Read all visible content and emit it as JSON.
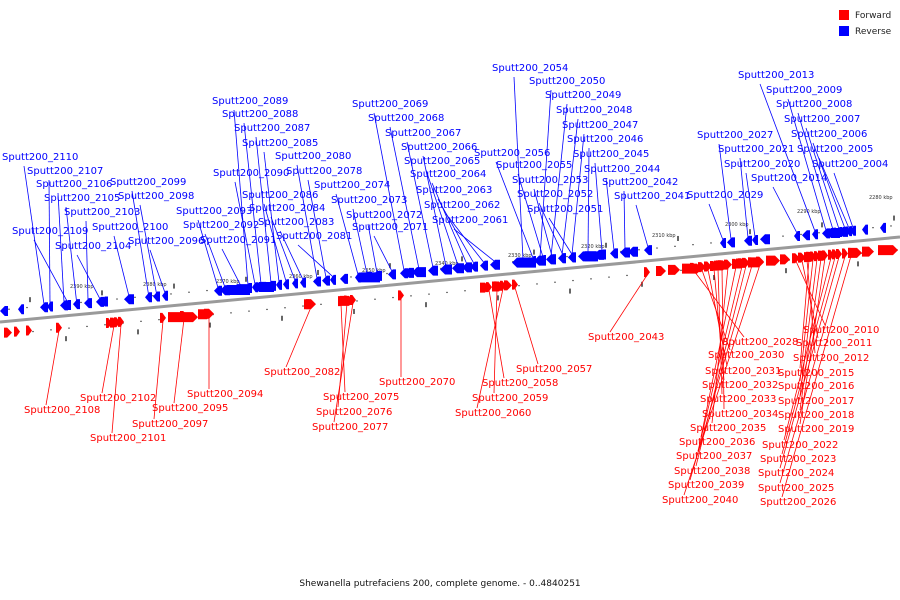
{
  "caption": "Shewanella putrefaciens 200, complete genome. - 0..4840251",
  "legend": {
    "forward_label": "Forward",
    "reverse_label": "Reverse",
    "forward_color": "#ff0000",
    "reverse_color": "#0000ff"
  },
  "colors": {
    "forward": "#ff0000",
    "reverse": "#0000ff",
    "backbone": "#888888"
  },
  "axis": {
    "ticks": [
      "2390 kbp",
      "2380 kbp",
      "2370 kbp",
      "2360 kbp",
      "2350 kbp",
      "2340 kbp",
      "2330 kbp",
      "2320 kbp",
      "2310 kbp",
      "2300 kbp",
      "2290 kbp",
      "2280 kbp"
    ]
  },
  "reverse_genes": [
    "Sputt200_2110",
    "Sputt200_2107",
    "Sputt200_2106",
    "Sputt200_2105",
    "Sputt200_2109",
    "Sputt200_2103",
    "Sputt200_2104",
    "Sputt200_2100",
    "Sputt200_2099",
    "Sputt200_2098",
    "Sputt200_2096",
    "Sputt200_2093",
    "Sputt200_2092",
    "Sputt200_2091",
    "Sputt200_2089",
    "Sputt200_2088",
    "Sputt200_2087",
    "Sputt200_2085",
    "Sputt200_2090",
    "Sputt200_2086",
    "Sputt200_2084",
    "Sputt200_2083",
    "Sputt200_2080",
    "Sputt200_2078",
    "Sputt200_2081",
    "Sputt200_2074",
    "Sputt200_2073",
    "Sputt200_2072",
    "Sputt200_2071",
    "Sputt200_2069",
    "Sputt200_2068",
    "Sputt200_2067",
    "Sputt200_2066",
    "Sputt200_2065",
    "Sputt200_2064",
    "Sputt200_2063",
    "Sputt200_2062",
    "Sputt200_2061",
    "Sputt200_2054",
    "Sputt200_2050",
    "Sputt200_2049",
    "Sputt200_2048",
    "Sputt200_2047",
    "Sputt200_2046",
    "Sputt200_2056",
    "Sputt200_2055",
    "Sputt200_2053",
    "Sputt200_2045",
    "Sputt200_2044",
    "Sputt200_2052",
    "Sputt200_2042",
    "Sputt200_2051",
    "Sputt200_2041",
    "Sputt200_2027",
    "Sputt200_2021",
    "Sputt200_2020",
    "Sputt200_2029",
    "Sputt200_2014",
    "Sputt200_2013",
    "Sputt200_2009",
    "Sputt200_2008",
    "Sputt200_2007",
    "Sputt200_2006",
    "Sputt200_2005",
    "Sputt200_2004"
  ],
  "forward_genes": [
    "Sputt200_2108",
    "Sputt200_2102",
    "Sputt200_2101",
    "Sputt200_2097",
    "Sputt200_2095",
    "Sputt200_2094",
    "Sputt200_2082",
    "Sputt200_2075",
    "Sputt200_2076",
    "Sputt200_2077",
    "Sputt200_2070",
    "Sputt200_2058",
    "Sputt200_2059",
    "Sputt200_2060",
    "Sputt200_2057",
    "Sputt200_2043",
    "Sputt200_2028",
    "Sputt200_2030",
    "Sputt200_2031",
    "Sputt200_2032",
    "Sputt200_2033",
    "Sputt200_2034",
    "Sputt200_2035",
    "Sputt200_2036",
    "Sputt200_2037",
    "Sputt200_2038",
    "Sputt200_2039",
    "Sputt200_2040",
    "Sputt200_2010",
    "Sputt200_2011",
    "Sputt200_2012",
    "Sputt200_2015",
    "Sputt200_2016",
    "Sputt200_2017",
    "Sputt200_2018",
    "Sputt200_2019",
    "Sputt200_2022",
    "Sputt200_2023",
    "Sputt200_2024",
    "Sputt200_2025",
    "Sputt200_2026"
  ]
}
